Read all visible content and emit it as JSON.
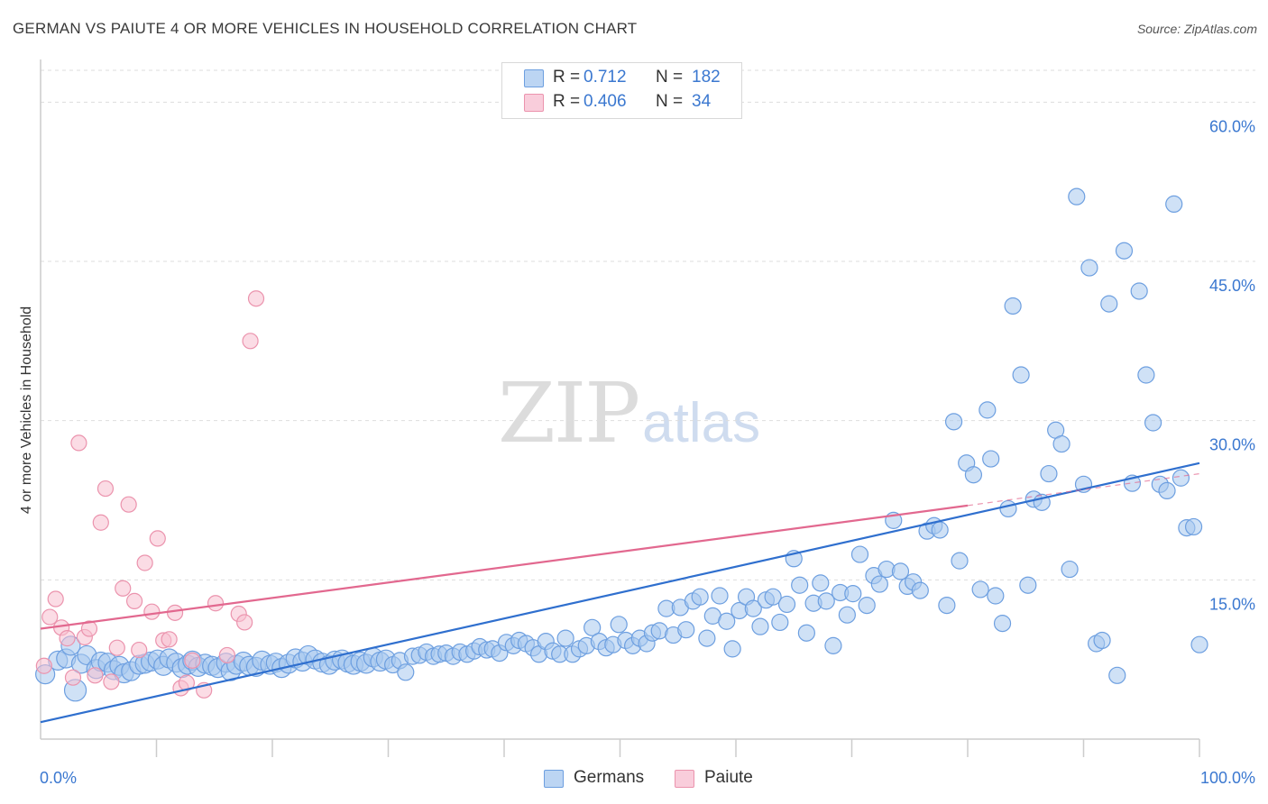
{
  "title": "GERMAN VS PAIUTE 4 OR MORE VEHICLES IN HOUSEHOLD CORRELATION CHART",
  "source": "Source: ZipAtlas.com",
  "watermark": {
    "zip": "ZIP",
    "atlas": "atlas"
  },
  "legend": {
    "rows": [
      {
        "r_label": "R =",
        "r_value": "0.712",
        "n_label": "N =",
        "n_value": "182"
      },
      {
        "r_label": "R =",
        "r_value": "0.406",
        "n_label": "N =",
        "n_value": "34"
      }
    ]
  },
  "bottom_legend": [
    "Germans",
    "Paiute"
  ],
  "colors": {
    "germans_fill": "#a8c8ef",
    "germans_stroke": "#6d9fe0",
    "germans_line": "#2f6fce",
    "paiute_fill": "#f7bfd0",
    "paiute_stroke": "#eb93ad",
    "paiute_line": "#e2688f",
    "axis_label": "#3b78d0",
    "grid": "#dddddd"
  },
  "chart_data": {
    "type": "scatter",
    "title": "GERMAN VS PAIUTE 4 OR MORE VEHICLES IN HOUSEHOLD CORRELATION CHART",
    "xlabel": "",
    "ylabel": "4 or more Vehicles in Household",
    "xlim": [
      0,
      100
    ],
    "ylim": [
      0,
      63
    ],
    "x_tick_labels": [
      "0.0%",
      "100.0%"
    ],
    "y_ticks": [
      15,
      30,
      45,
      60
    ],
    "y_tick_labels": [
      "15.0%",
      "30.0%",
      "45.0%",
      "60.0%"
    ],
    "grid": true,
    "legend_position": "top-center",
    "series": [
      {
        "name": "Germans",
        "r": 0.712,
        "n": 182,
        "trend": {
          "x": [
            0,
            100
          ],
          "y": [
            1.6,
            26.0
          ]
        },
        "points": [
          [
            0.4,
            6.1
          ],
          [
            1.5,
            7.4
          ],
          [
            2.2,
            7.6
          ],
          [
            2.6,
            8.8
          ],
          [
            3,
            4.6
          ],
          [
            3.5,
            7.1
          ],
          [
            4,
            7.9
          ],
          [
            4.8,
            6.6
          ],
          [
            5.2,
            7.3
          ],
          [
            5.8,
            7.2
          ],
          [
            6.3,
            6.5
          ],
          [
            6.8,
            6.9
          ],
          [
            7.2,
            6.2
          ],
          [
            7.8,
            6.4
          ],
          [
            8.5,
            7.0
          ],
          [
            9,
            7.1
          ],
          [
            9.5,
            7.3
          ],
          [
            10.1,
            7.5
          ],
          [
            10.6,
            6.9
          ],
          [
            11.1,
            7.6
          ],
          [
            11.7,
            7.2
          ],
          [
            12.2,
            6.7
          ],
          [
            12.7,
            7.0
          ],
          [
            13.1,
            7.4
          ],
          [
            13.6,
            6.8
          ],
          [
            14.2,
            7.1
          ],
          [
            14.8,
            6.9
          ],
          [
            15.3,
            6.7
          ],
          [
            16,
            7.2
          ],
          [
            16.4,
            6.4
          ],
          [
            16.9,
            7.0
          ],
          [
            17.5,
            7.3
          ],
          [
            18,
            6.9
          ],
          [
            18.6,
            6.8
          ],
          [
            19.1,
            7.4
          ],
          [
            19.8,
            7.0
          ],
          [
            20.3,
            7.2
          ],
          [
            20.8,
            6.7
          ],
          [
            21.4,
            7.1
          ],
          [
            22,
            7.6
          ],
          [
            22.6,
            7.3
          ],
          [
            23.1,
            7.9
          ],
          [
            23.7,
            7.5
          ],
          [
            24.3,
            7.2
          ],
          [
            24.9,
            7.0
          ],
          [
            25.4,
            7.4
          ],
          [
            26,
            7.5
          ],
          [
            26.5,
            7.2
          ],
          [
            27,
            7.0
          ],
          [
            27.6,
            7.3
          ],
          [
            28.1,
            7.1
          ],
          [
            28.7,
            7.7
          ],
          [
            29.3,
            7.3
          ],
          [
            29.8,
            7.5
          ],
          [
            30.4,
            7.0
          ],
          [
            31,
            7.4
          ],
          [
            31.5,
            6.3
          ],
          [
            32.1,
            7.8
          ],
          [
            32.7,
            7.9
          ],
          [
            33.3,
            8.2
          ],
          [
            33.9,
            7.8
          ],
          [
            34.4,
            8.0
          ],
          [
            35,
            8.1
          ],
          [
            35.6,
            7.8
          ],
          [
            36.2,
            8.2
          ],
          [
            36.8,
            8.0
          ],
          [
            37.4,
            8.3
          ],
          [
            37.9,
            8.7
          ],
          [
            38.5,
            8.4
          ],
          [
            39,
            8.5
          ],
          [
            39.6,
            8.1
          ],
          [
            40.2,
            9.1
          ],
          [
            40.8,
            8.8
          ],
          [
            41.3,
            9.3
          ],
          [
            41.9,
            9.0
          ],
          [
            42.5,
            8.6
          ],
          [
            43,
            8.0
          ],
          [
            43.6,
            9.2
          ],
          [
            44.2,
            8.3
          ],
          [
            44.8,
            8.0
          ],
          [
            45.3,
            9.5
          ],
          [
            45.9,
            8.0
          ],
          [
            46.5,
            8.5
          ],
          [
            47.1,
            8.8
          ],
          [
            47.6,
            10.5
          ],
          [
            48.2,
            9.2
          ],
          [
            48.8,
            8.6
          ],
          [
            49.4,
            8.9
          ],
          [
            49.9,
            10.8
          ],
          [
            50.5,
            9.3
          ],
          [
            51.1,
            8.8
          ],
          [
            51.7,
            9.5
          ],
          [
            52.3,
            9.0
          ],
          [
            52.8,
            10.0
          ],
          [
            53.4,
            10.2
          ],
          [
            54,
            12.3
          ],
          [
            54.6,
            9.8
          ],
          [
            55.2,
            12.4
          ],
          [
            55.7,
            10.3
          ],
          [
            56.3,
            13.0
          ],
          [
            56.9,
            13.4
          ],
          [
            57.5,
            9.5
          ],
          [
            58,
            11.6
          ],
          [
            58.6,
            13.5
          ],
          [
            59.2,
            11.1
          ],
          [
            59.7,
            8.5
          ],
          [
            60.3,
            12.1
          ],
          [
            60.9,
            13.4
          ],
          [
            61.5,
            12.3
          ],
          [
            62.1,
            10.6
          ],
          [
            62.6,
            13.1
          ],
          [
            63.2,
            13.4
          ],
          [
            63.8,
            11.0
          ],
          [
            64.4,
            12.7
          ],
          [
            65,
            17.0
          ],
          [
            65.5,
            14.5
          ],
          [
            66.1,
            10.0
          ],
          [
            66.7,
            12.8
          ],
          [
            67.3,
            14.7
          ],
          [
            67.8,
            13.0
          ],
          [
            68.4,
            8.8
          ],
          [
            69,
            13.8
          ],
          [
            69.6,
            11.7
          ],
          [
            70.1,
            13.7
          ],
          [
            70.7,
            17.4
          ],
          [
            71.3,
            12.6
          ],
          [
            71.9,
            15.4
          ],
          [
            72.4,
            14.6
          ],
          [
            73,
            16.0
          ],
          [
            73.6,
            20.6
          ],
          [
            74.2,
            15.8
          ],
          [
            74.8,
            14.4
          ],
          [
            75.3,
            14.8
          ],
          [
            75.9,
            14.0
          ],
          [
            76.5,
            19.6
          ],
          [
            77.1,
            20.1
          ],
          [
            77.6,
            19.7
          ],
          [
            78.2,
            12.6
          ],
          [
            78.8,
            29.9
          ],
          [
            79.3,
            16.8
          ],
          [
            79.9,
            26.0
          ],
          [
            80.5,
            24.9
          ],
          [
            81.1,
            14.1
          ],
          [
            81.7,
            31.0
          ],
          [
            82,
            26.4
          ],
          [
            82.4,
            13.5
          ],
          [
            83,
            10.9
          ],
          [
            83.5,
            21.7
          ],
          [
            83.9,
            40.8
          ],
          [
            84.6,
            34.3
          ],
          [
            85.2,
            14.5
          ],
          [
            85.7,
            22.6
          ],
          [
            86.4,
            22.3
          ],
          [
            87,
            25.0
          ],
          [
            87.6,
            29.1
          ],
          [
            88.1,
            27.8
          ],
          [
            88.8,
            16.0
          ],
          [
            89.4,
            51.1
          ],
          [
            90,
            24.0
          ],
          [
            90.5,
            44.4
          ],
          [
            91.1,
            9.0
          ],
          [
            91.6,
            9.3
          ],
          [
            92.2,
            41.0
          ],
          [
            92.9,
            6.0
          ],
          [
            93.5,
            46.0
          ],
          [
            94.2,
            24.1
          ],
          [
            94.8,
            42.2
          ],
          [
            95.4,
            34.3
          ],
          [
            96,
            29.8
          ],
          [
            96.6,
            24.0
          ],
          [
            97.2,
            23.4
          ],
          [
            97.8,
            50.4
          ],
          [
            98.4,
            24.6
          ],
          [
            98.9,
            19.9
          ],
          [
            99.5,
            20.0
          ],
          [
            100,
            8.9
          ]
        ]
      },
      {
        "name": "Paiute",
        "r": 0.406,
        "n": 34,
        "trend": {
          "x": [
            0,
            80
          ],
          "y": [
            10.4,
            22.0
          ]
        },
        "trend_dashed": {
          "x": [
            80,
            100
          ],
          "y": [
            22.0,
            25.0
          ]
        },
        "points": [
          [
            0.3,
            6.9
          ],
          [
            0.8,
            11.5
          ],
          [
            1.3,
            13.2
          ],
          [
            1.8,
            10.5
          ],
          [
            2.3,
            9.5
          ],
          [
            2.8,
            5.8
          ],
          [
            3.3,
            27.9
          ],
          [
            3.8,
            9.6
          ],
          [
            4.2,
            10.4
          ],
          [
            4.7,
            6.0
          ],
          [
            5.2,
            20.4
          ],
          [
            5.6,
            23.6
          ],
          [
            6.1,
            5.4
          ],
          [
            6.6,
            8.6
          ],
          [
            7.1,
            14.2
          ],
          [
            7.6,
            22.1
          ],
          [
            8.1,
            13.0
          ],
          [
            8.5,
            8.4
          ],
          [
            9,
            16.6
          ],
          [
            9.6,
            12.0
          ],
          [
            10.1,
            18.9
          ],
          [
            10.6,
            9.3
          ],
          [
            11.1,
            9.4
          ],
          [
            11.6,
            11.9
          ],
          [
            12.1,
            4.8
          ],
          [
            12.6,
            5.3
          ],
          [
            13.1,
            7.4
          ],
          [
            14.1,
            4.6
          ],
          [
            15.1,
            12.8
          ],
          [
            16.1,
            7.9
          ],
          [
            17.1,
            11.8
          ],
          [
            17.6,
            11.0
          ],
          [
            18.1,
            37.5
          ],
          [
            18.6,
            41.5
          ]
        ]
      }
    ]
  }
}
